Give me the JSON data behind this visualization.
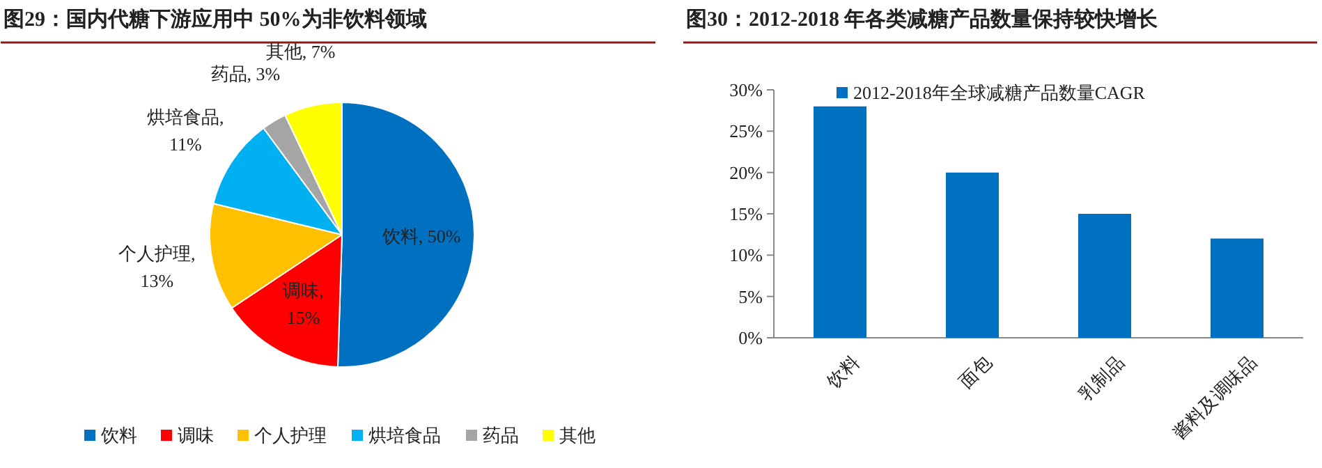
{
  "chart_data": [
    {
      "type": "pie",
      "title": "图29：国内代糖下游应用中 50%为非饮料领域",
      "categories": [
        "饮料",
        "调味",
        "个人护理",
        "烘培食品",
        "药品",
        "其他"
      ],
      "values": [
        50,
        15,
        13,
        11,
        3,
        7
      ],
      "colors": [
        "#0070c0",
        "#ff0000",
        "#ffc000",
        "#00b0f0",
        "#a5a5a5",
        "#ffff00"
      ],
      "value_labels": [
        "饮料, 50%",
        "调味, 15%",
        "个人护理, 13%",
        "烘培食品, 11%",
        "药品, 3%",
        "其他, 7%"
      ],
      "legend": "bottom"
    },
    {
      "type": "bar",
      "title": "图30：2012-2018 年各类减糖产品数量保持较快增长",
      "categories": [
        "饮料",
        "面包",
        "乳制品",
        "酱料及调味品"
      ],
      "series": [
        {
          "name": "2012-2018年全球减糖产品数量CAGR",
          "color": "#0070c0",
          "values": [
            28,
            20,
            15,
            12
          ]
        }
      ],
      "ylim": [
        0,
        30
      ],
      "yticks": [
        {
          "value": 0,
          "label": "0%"
        },
        {
          "value": 5,
          "label": "5%"
        },
        {
          "value": 10,
          "label": "10%"
        },
        {
          "value": 15,
          "label": "15%"
        },
        {
          "value": 20,
          "label": "20%"
        },
        {
          "value": 25,
          "label": "25%"
        },
        {
          "value": 30,
          "label": "30%"
        }
      ],
      "grid": false,
      "legend": "top"
    }
  ]
}
